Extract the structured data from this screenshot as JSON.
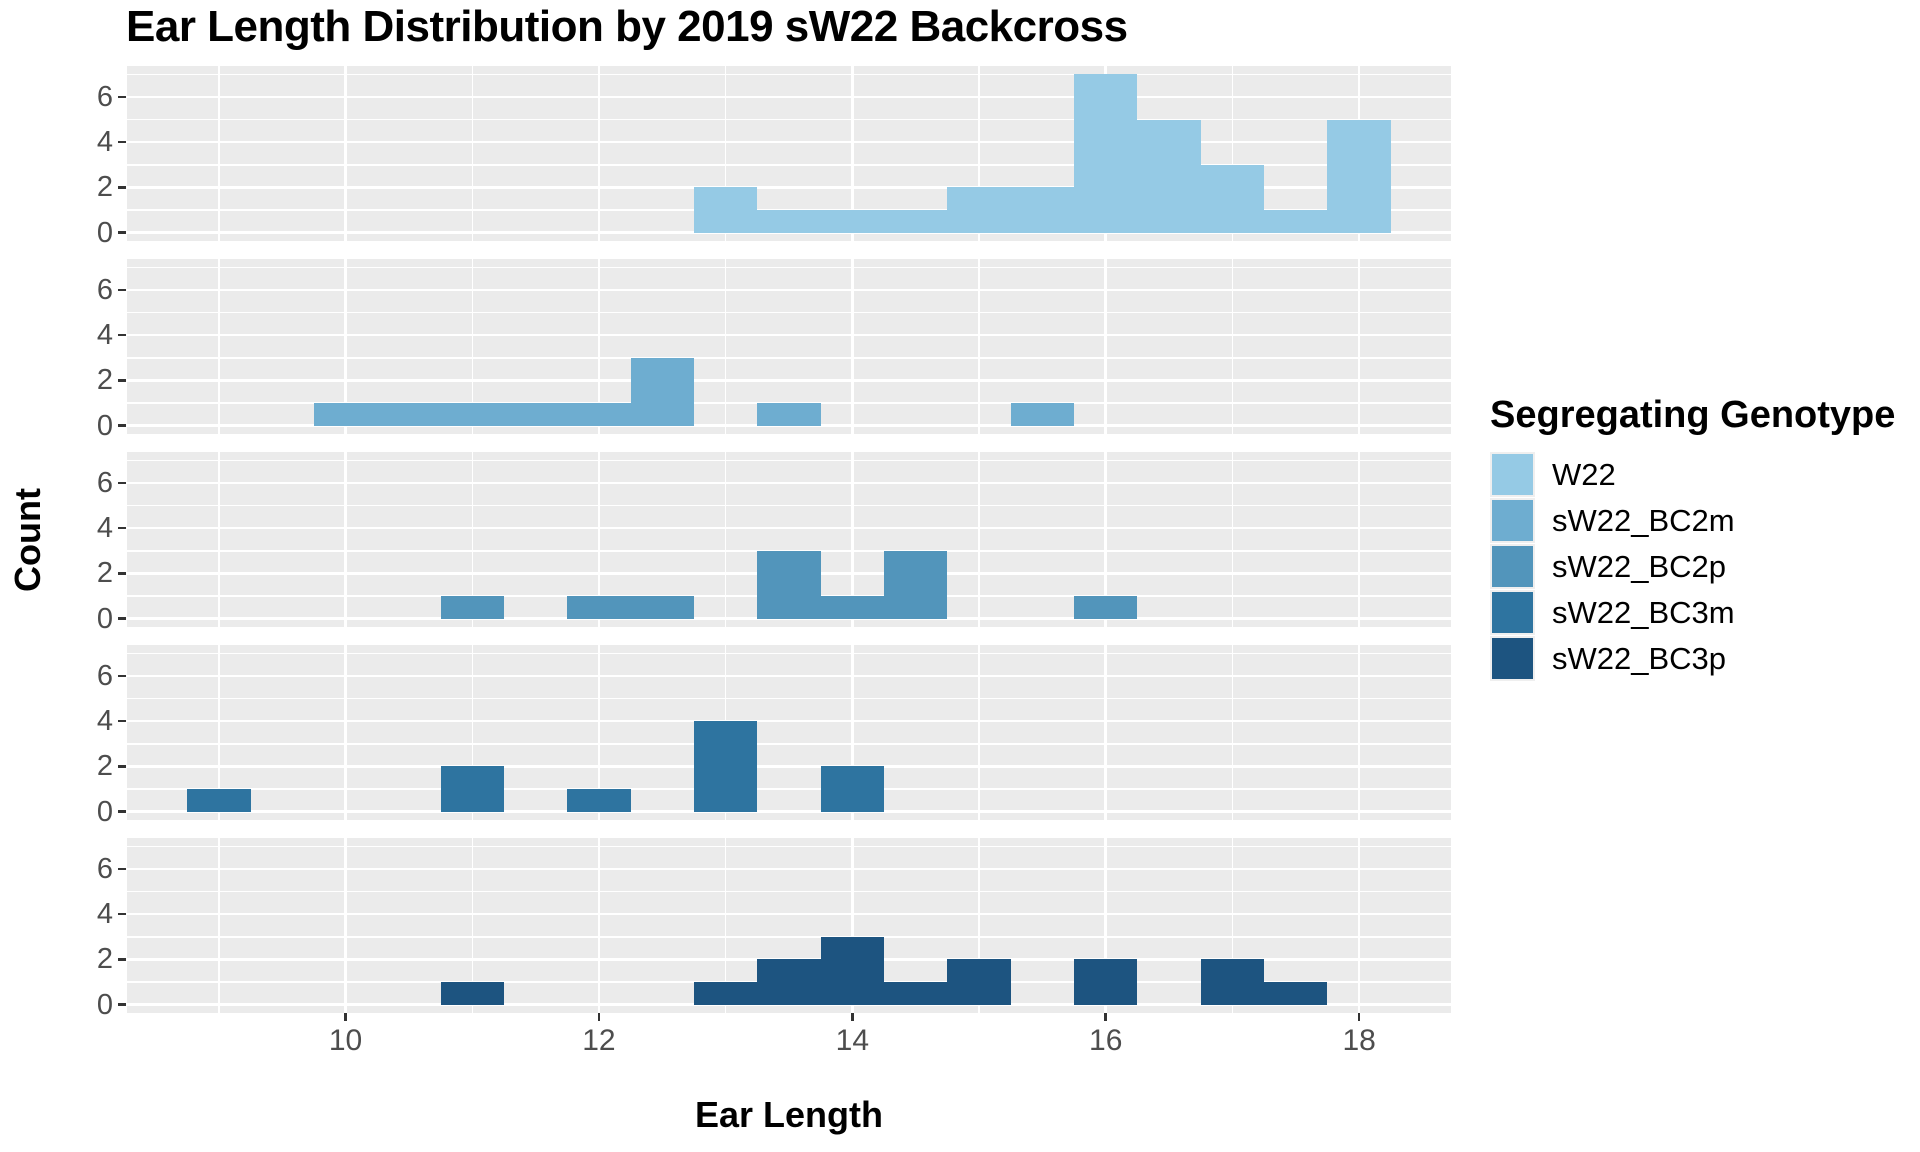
{
  "title": "Ear Length Distribution by 2019 sW22 Backcross",
  "axes": {
    "x_label": "Ear Length",
    "y_label": "Count"
  },
  "legend": {
    "title": "Segregating Genotype"
  },
  "chart_data": {
    "type": "bar",
    "subtype": "faceted-histogram",
    "title": "Ear Length Distribution by 2019 sW22 Backcross",
    "xlabel": "Ear Length",
    "ylabel": "Count",
    "legend_title": "Segregating Genotype",
    "binwidth": 0.5,
    "x_domain": [
      8.275,
      18.725
    ],
    "x_ticks": [
      10,
      12,
      14,
      16,
      18
    ],
    "x_minor_gridlines": [
      9,
      11,
      13,
      15,
      17
    ],
    "y_domain": [
      -0.37,
      7.37
    ],
    "y_ticks": [
      0,
      2,
      4,
      6
    ],
    "y_minor_gridlines": [
      1,
      3,
      5,
      7
    ],
    "panel_background": "#ebebeb",
    "gridline_color": "#ffffff",
    "tick_label_color": "#4d4d4d",
    "facets": [
      {
        "name": "W22",
        "color": "#95cae5",
        "bars": [
          [
            12.75,
            2
          ],
          [
            13.25,
            1
          ],
          [
            13.75,
            1
          ],
          [
            14.25,
            1
          ],
          [
            14.75,
            2
          ],
          [
            15.25,
            2
          ],
          [
            15.75,
            7
          ],
          [
            16.25,
            5
          ],
          [
            16.75,
            3
          ],
          [
            17.25,
            1
          ],
          [
            17.75,
            5
          ]
        ]
      },
      {
        "name": "sW22_BC2m",
        "color": "#6eadd0",
        "bars": [
          [
            9.75,
            1
          ],
          [
            10.25,
            1
          ],
          [
            10.75,
            1
          ],
          [
            11.25,
            1
          ],
          [
            11.75,
            1
          ],
          [
            12.25,
            3
          ],
          [
            13.25,
            1
          ],
          [
            15.25,
            1
          ]
        ]
      },
      {
        "name": "sW22_BC2p",
        "color": "#5295bb",
        "bars": [
          [
            10.75,
            1
          ],
          [
            11.75,
            1
          ],
          [
            12.25,
            1
          ],
          [
            13.25,
            3
          ],
          [
            13.75,
            1
          ],
          [
            14.25,
            3
          ],
          [
            15.75,
            1
          ]
        ]
      },
      {
        "name": "sW22_BC3m",
        "color": "#2e74a0",
        "bars": [
          [
            8.75,
            1
          ],
          [
            10.75,
            2
          ],
          [
            11.75,
            1
          ],
          [
            12.75,
            4
          ],
          [
            13.75,
            2
          ]
        ]
      },
      {
        "name": "sW22_BC3p",
        "color": "#1d5480",
        "bars": [
          [
            10.75,
            1
          ],
          [
            12.75,
            1
          ],
          [
            13.25,
            2
          ],
          [
            13.75,
            3
          ],
          [
            14.25,
            1
          ],
          [
            14.75,
            2
          ],
          [
            15.75,
            2
          ],
          [
            16.75,
            2
          ],
          [
            17.25,
            1
          ]
        ]
      }
    ]
  }
}
